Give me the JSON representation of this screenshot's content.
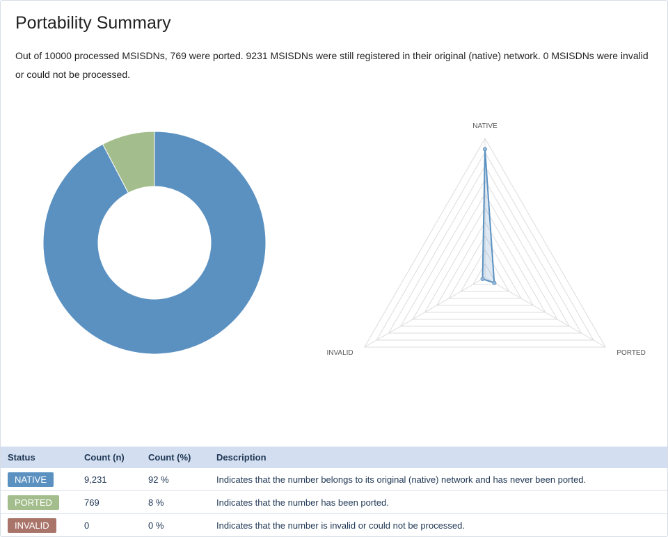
{
  "title": "Portability Summary",
  "summary_text": "Out of 10000 processed MSISDNs, 769 were ported. 9231 MSISDNs were still registered in their original (native) network. 0 MSISDNs were invalid or could not be processed.",
  "colors": {
    "native": "#5b91c1",
    "ported": "#a3be8c",
    "invalid": "#a9756a",
    "header_bg": "#d3dff0",
    "header_text": "#1d3553"
  },
  "chart_data": [
    {
      "type": "pie",
      "variant": "donut",
      "categories": [
        "NATIVE",
        "PORTED",
        "INVALID"
      ],
      "values": [
        9231,
        769,
        0
      ],
      "colors": [
        "#5b91c1",
        "#a3be8c",
        "#a9756a"
      ]
    },
    {
      "type": "radar",
      "axes": [
        "NATIVE",
        "PORTED",
        "INVALID"
      ],
      "values": [
        9231,
        769,
        0
      ],
      "range": [
        0,
        10000
      ],
      "grid_levels": 10
    }
  ],
  "table": {
    "headers": [
      "Status",
      "Count (n)",
      "Count (%)",
      "Description"
    ],
    "rows": [
      {
        "status": "NATIVE",
        "count": "9,231",
        "percent": "92 %",
        "description": "Indicates that the number belongs to its original (native) network and has never been ported."
      },
      {
        "status": "PORTED",
        "count": "769",
        "percent": "8 %",
        "description": "Indicates that the number has been ported."
      },
      {
        "status": "INVALID",
        "count": "0",
        "percent": "0 %",
        "description": "Indicates that the number is invalid or could not be processed."
      }
    ]
  }
}
